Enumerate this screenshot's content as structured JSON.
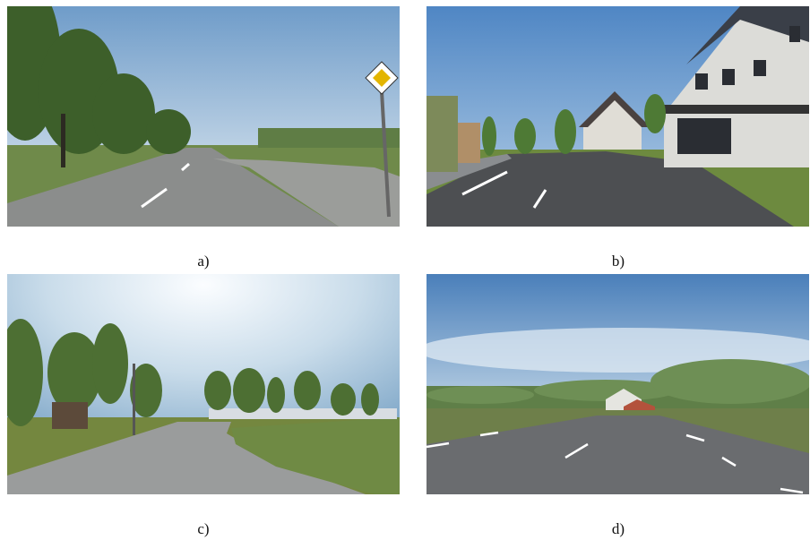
{
  "figure": {
    "panels": [
      {
        "caption": "a)"
      },
      {
        "caption": "b)"
      },
      {
        "caption": "c)"
      },
      {
        "caption": "d)"
      }
    ]
  }
}
